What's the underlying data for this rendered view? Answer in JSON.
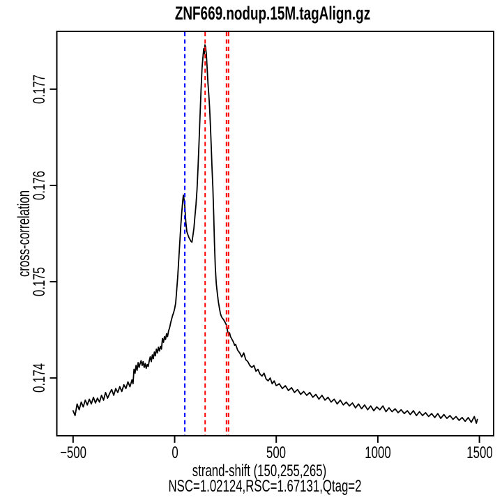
{
  "colors": {
    "background": "#ffffff",
    "curve": "#000000",
    "read_length_line": "#0000FF",
    "fragment_length_line": "#FF0000",
    "axis": "#000000"
  },
  "chart_data": {
    "type": "line",
    "title": "ZNF669.nodup.15M.tagAlign.gz",
    "xlabel": "strand-shift (150,255,265)",
    "stats_label": "NSC=1.02124,RSC=1.67131,Qtag=2",
    "ylabel": "cross-correlation",
    "legend_position": "none",
    "grid": false,
    "xlim": [
      -580,
      1570
    ],
    "ylim": [
      0.1734,
      0.1776
    ],
    "x_ticks": {
      "values": [
        -500,
        0,
        500,
        1000,
        1500
      ],
      "labels": [
        "−500",
        "0",
        "500",
        "1000",
        "1500"
      ]
    },
    "y_ticks": {
      "values": [
        0.174,
        0.175,
        0.176,
        0.177
      ],
      "labels": [
        "0.174",
        "0.175",
        "0.176",
        "0.177"
      ]
    },
    "vlines": [
      {
        "x": 50,
        "color": "#0000FF",
        "name": "read-length-line"
      },
      {
        "x": 150,
        "color": "#FF0000",
        "name": "fragment-length-line-150"
      },
      {
        "x": 255,
        "color": "#FF0000",
        "name": "fragment-length-line-255"
      },
      {
        "x": 265,
        "color": "#FF0000",
        "name": "fragment-length-line-265"
      }
    ],
    "series": [
      {
        "name": "cross-correlation",
        "color": "#000000",
        "points": [
          [
            -500,
            0.17366
          ],
          [
            -490,
            0.17361
          ],
          [
            -480,
            0.17373
          ],
          [
            -470,
            0.17367
          ],
          [
            -460,
            0.17375
          ],
          [
            -450,
            0.1737
          ],
          [
            -440,
            0.17377
          ],
          [
            -430,
            0.17372
          ],
          [
            -420,
            0.17378
          ],
          [
            -410,
            0.17373
          ],
          [
            -400,
            0.1738
          ],
          [
            -390,
            0.17374
          ],
          [
            -380,
            0.17379
          ],
          [
            -370,
            0.17375
          ],
          [
            -360,
            0.17382
          ],
          [
            -350,
            0.17377
          ],
          [
            -340,
            0.17385
          ],
          [
            -330,
            0.17379
          ],
          [
            -320,
            0.17384
          ],
          [
            -310,
            0.17388
          ],
          [
            -300,
            0.17382
          ],
          [
            -290,
            0.17389
          ],
          [
            -280,
            0.17385
          ],
          [
            -270,
            0.17391
          ],
          [
            -260,
            0.17386
          ],
          [
            -250,
            0.17393
          ],
          [
            -240,
            0.17389
          ],
          [
            -230,
            0.17396
          ],
          [
            -220,
            0.17391
          ],
          [
            -210,
            0.17398
          ],
          [
            -205,
            0.17394
          ],
          [
            -200,
            0.17409
          ],
          [
            -195,
            0.17405
          ],
          [
            -190,
            0.17413
          ],
          [
            -185,
            0.17408
          ],
          [
            -180,
            0.17416
          ],
          [
            -175,
            0.17411
          ],
          [
            -170,
            0.17415
          ],
          [
            -165,
            0.17418
          ],
          [
            -160,
            0.17413
          ],
          [
            -155,
            0.17417
          ],
          [
            -150,
            0.17411
          ],
          [
            -145,
            0.17415
          ],
          [
            -140,
            0.1741
          ],
          [
            -135,
            0.17414
          ],
          [
            -130,
            0.17412
          ],
          [
            -125,
            0.17418
          ],
          [
            -120,
            0.17422
          ],
          [
            -115,
            0.17417
          ],
          [
            -110,
            0.17424
          ],
          [
            -105,
            0.1742
          ],
          [
            -100,
            0.17427
          ],
          [
            -95,
            0.17423
          ],
          [
            -90,
            0.1743
          ],
          [
            -85,
            0.17426
          ],
          [
            -80,
            0.17432
          ],
          [
            -75,
            0.17428
          ],
          [
            -70,
            0.17433
          ],
          [
            -65,
            0.1743
          ],
          [
            -60,
            0.17441
          ],
          [
            -55,
            0.17437
          ],
          [
            -50,
            0.17443
          ],
          [
            -45,
            0.1744
          ],
          [
            -40,
            0.17446
          ],
          [
            -35,
            0.17443
          ],
          [
            -30,
            0.17449
          ],
          [
            -25,
            0.17452
          ],
          [
            -20,
            0.17457
          ],
          [
            -15,
            0.17461
          ],
          [
            -10,
            0.17465
          ],
          [
            -5,
            0.17468
          ],
          [
            0,
            0.17472
          ],
          [
            5,
            0.17478
          ],
          [
            10,
            0.17491
          ],
          [
            15,
            0.17505
          ],
          [
            20,
            0.17522
          ],
          [
            25,
            0.1754
          ],
          [
            30,
            0.17558
          ],
          [
            35,
            0.17572
          ],
          [
            40,
            0.17585
          ],
          [
            43,
            0.1759
          ],
          [
            46,
            0.17586
          ],
          [
            50,
            0.17578
          ],
          [
            55,
            0.17562
          ],
          [
            60,
            0.17552
          ],
          [
            65,
            0.17549
          ],
          [
            70,
            0.17546
          ],
          [
            75,
            0.17544
          ],
          [
            80,
            0.17542
          ],
          [
            85,
            0.17541
          ],
          [
            90,
            0.17548
          ],
          [
            95,
            0.17556
          ],
          [
            100,
            0.17568
          ],
          [
            105,
            0.1758
          ],
          [
            110,
            0.17596
          ],
          [
            115,
            0.17618
          ],
          [
            120,
            0.17645
          ],
          [
            125,
            0.17672
          ],
          [
            130,
            0.177
          ],
          [
            135,
            0.17722
          ],
          [
            140,
            0.17735
          ],
          [
            143,
            0.17742
          ],
          [
            146,
            0.17737
          ],
          [
            149,
            0.17746
          ],
          [
            152,
            0.17744
          ],
          [
            156,
            0.17736
          ],
          [
            160,
            0.17722
          ],
          [
            164,
            0.17706
          ],
          [
            168,
            0.17694
          ],
          [
            172,
            0.17681
          ],
          [
            176,
            0.17662
          ],
          [
            180,
            0.1764
          ],
          [
            184,
            0.17618
          ],
          [
            188,
            0.17598
          ],
          [
            192,
            0.1757
          ],
          [
            196,
            0.1754
          ],
          [
            200,
            0.17515
          ],
          [
            205,
            0.17498
          ],
          [
            210,
            0.17488
          ],
          [
            215,
            0.17479
          ],
          [
            220,
            0.17473
          ],
          [
            225,
            0.17467
          ],
          [
            230,
            0.17464
          ],
          [
            235,
            0.17462
          ],
          [
            240,
            0.17461
          ],
          [
            245,
            0.17459
          ],
          [
            250,
            0.17457
          ],
          [
            255,
            0.17455
          ],
          [
            260,
            0.17449
          ],
          [
            265,
            0.17446
          ],
          [
            270,
            0.17447
          ],
          [
            275,
            0.17443
          ],
          [
            280,
            0.17441
          ],
          [
            285,
            0.17439
          ],
          [
            290,
            0.17437
          ],
          [
            295,
            0.17434
          ],
          [
            300,
            0.17435
          ],
          [
            310,
            0.17429
          ],
          [
            320,
            0.17426
          ],
          [
            330,
            0.17422
          ],
          [
            340,
            0.17426
          ],
          [
            350,
            0.17419
          ],
          [
            360,
            0.17417
          ],
          [
            370,
            0.17413
          ],
          [
            380,
            0.17411
          ],
          [
            390,
            0.17413
          ],
          [
            400,
            0.17407
          ],
          [
            410,
            0.17409
          ],
          [
            420,
            0.17404
          ],
          [
            430,
            0.17402
          ],
          [
            440,
            0.17405
          ],
          [
            450,
            0.17399
          ],
          [
            460,
            0.17397
          ],
          [
            470,
            0.174
          ],
          [
            480,
            0.17394
          ],
          [
            490,
            0.17397
          ],
          [
            500,
            0.17392
          ],
          [
            515,
            0.17394
          ],
          [
            530,
            0.17389
          ],
          [
            545,
            0.17392
          ],
          [
            560,
            0.17387
          ],
          [
            575,
            0.1739
          ],
          [
            590,
            0.17385
          ],
          [
            605,
            0.17388
          ],
          [
            620,
            0.17383
          ],
          [
            635,
            0.17386
          ],
          [
            650,
            0.17382
          ],
          [
            665,
            0.17385
          ],
          [
            680,
            0.1738
          ],
          [
            695,
            0.17383
          ],
          [
            710,
            0.17378
          ],
          [
            725,
            0.17382
          ],
          [
            740,
            0.17377
          ],
          [
            755,
            0.1738
          ],
          [
            770,
            0.17375
          ],
          [
            785,
            0.17378
          ],
          [
            800,
            0.17373
          ],
          [
            815,
            0.17377
          ],
          [
            830,
            0.17372
          ],
          [
            845,
            0.17375
          ],
          [
            860,
            0.17371
          ],
          [
            875,
            0.17374
          ],
          [
            890,
            0.17369
          ],
          [
            905,
            0.17373
          ],
          [
            920,
            0.17368
          ],
          [
            935,
            0.17372
          ],
          [
            950,
            0.17367
          ],
          [
            965,
            0.17371
          ],
          [
            980,
            0.17366
          ],
          [
            995,
            0.1737
          ],
          [
            1010,
            0.17367
          ],
          [
            1025,
            0.17371
          ],
          [
            1040,
            0.17365
          ],
          [
            1055,
            0.17369
          ],
          [
            1070,
            0.17365
          ],
          [
            1085,
            0.17368
          ],
          [
            1100,
            0.17364
          ],
          [
            1115,
            0.17367
          ],
          [
            1130,
            0.17363
          ],
          [
            1145,
            0.17366
          ],
          [
            1160,
            0.17362
          ],
          [
            1175,
            0.17366
          ],
          [
            1190,
            0.17361
          ],
          [
            1205,
            0.17365
          ],
          [
            1220,
            0.17361
          ],
          [
            1235,
            0.17364
          ],
          [
            1250,
            0.1736
          ],
          [
            1265,
            0.17363
          ],
          [
            1280,
            0.17359
          ],
          [
            1295,
            0.17363
          ],
          [
            1310,
            0.17358
          ],
          [
            1325,
            0.17362
          ],
          [
            1340,
            0.17358
          ],
          [
            1355,
            0.17361
          ],
          [
            1370,
            0.17357
          ],
          [
            1385,
            0.1736
          ],
          [
            1400,
            0.17356
          ],
          [
            1415,
            0.17359
          ],
          [
            1430,
            0.17355
          ],
          [
            1445,
            0.17359
          ],
          [
            1460,
            0.17354
          ],
          [
            1475,
            0.1736
          ],
          [
            1485,
            0.17353
          ],
          [
            1490,
            0.17357
          ]
        ]
      }
    ]
  }
}
